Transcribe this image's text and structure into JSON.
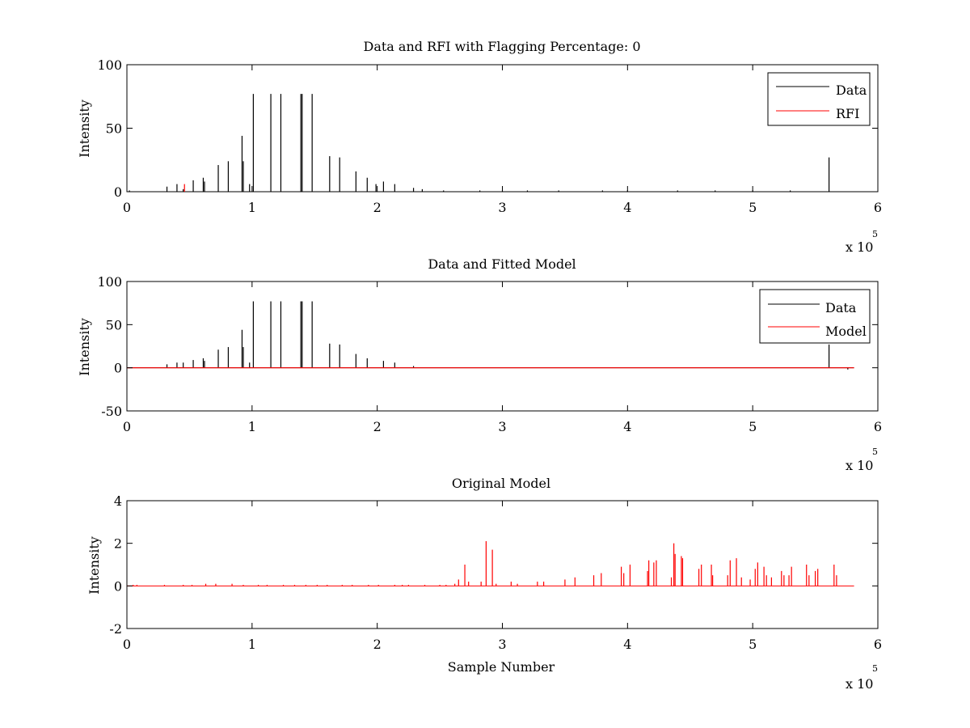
{
  "figure": {
    "background": "#ffffff"
  },
  "chart_data": [
    {
      "type": "line",
      "title": "Data and RFI with Flagging Percentage: 0",
      "xlabel": "",
      "ylabel": "Intensity",
      "xlim": [
        0,
        6
      ],
      "ylim": [
        0,
        100
      ],
      "xticks": [
        "0",
        "1",
        "2",
        "3",
        "4",
        "5",
        "6"
      ],
      "yticks": [
        "0",
        "50",
        "100"
      ],
      "ytick_values": [
        0,
        50,
        100
      ],
      "x_multiplier": {
        "base": "x 10",
        "exponent": "5"
      },
      "grid": false,
      "legend_position": "top-right",
      "series": [
        {
          "name": "Data",
          "color": "#000000",
          "baseline": 0,
          "spikes": [
            [
              0.02,
              1
            ],
            [
              0.32,
              4
            ],
            [
              0.4,
              6
            ],
            [
              0.45,
              2
            ],
            [
              0.53,
              9
            ],
            [
              0.61,
              11
            ],
            [
              0.62,
              8
            ],
            [
              0.73,
              21
            ],
            [
              0.81,
              24
            ],
            [
              0.92,
              44
            ],
            [
              0.93,
              24
            ],
            [
              0.98,
              6
            ],
            [
              1.01,
              77
            ],
            [
              1.15,
              77
            ],
            [
              1.23,
              77
            ],
            [
              1.39,
              77
            ],
            [
              1.4,
              77
            ],
            [
              1.48,
              77
            ],
            [
              1.62,
              28
            ],
            [
              1.7,
              27
            ],
            [
              1.83,
              16
            ],
            [
              1.92,
              11
            ],
            [
              1.99,
              6
            ],
            [
              2.05,
              8
            ],
            [
              2.14,
              6
            ],
            [
              2.29,
              3
            ],
            [
              2.36,
              2
            ],
            [
              2.53,
              1
            ],
            [
              2.82,
              1
            ],
            [
              3.0,
              1
            ],
            [
              3.2,
              1
            ],
            [
              3.45,
              1
            ],
            [
              3.8,
              1
            ],
            [
              4.0,
              1
            ],
            [
              4.4,
              1
            ],
            [
              4.7,
              1
            ],
            [
              5.0,
              1
            ],
            [
              5.3,
              1
            ],
            [
              5.61,
              27
            ]
          ]
        },
        {
          "name": "RFI",
          "color": "#ff0000",
          "baseline": 0,
          "spikes": [
            [
              0.46,
              6
            ]
          ]
        }
      ]
    },
    {
      "type": "line",
      "title": "Data and Fitted Model",
      "xlabel": "",
      "ylabel": "Intensity",
      "xlim": [
        0,
        6
      ],
      "ylim": [
        -50,
        100
      ],
      "xticks": [
        "0",
        "1",
        "2",
        "3",
        "4",
        "5",
        "6"
      ],
      "yticks": [
        "-50",
        "0",
        "50",
        "100"
      ],
      "ytick_values": [
        -50,
        0,
        50,
        100
      ],
      "x_multiplier": {
        "base": "x 10",
        "exponent": "5"
      },
      "grid": false,
      "legend_position": "top-right",
      "series": [
        {
          "name": "Data",
          "color": "#000000",
          "baseline": 0,
          "spikes": [
            [
              0.32,
              4
            ],
            [
              0.4,
              6
            ],
            [
              0.45,
              6
            ],
            [
              0.53,
              9
            ],
            [
              0.61,
              11
            ],
            [
              0.62,
              8
            ],
            [
              0.73,
              21
            ],
            [
              0.81,
              24
            ],
            [
              0.92,
              44
            ],
            [
              0.93,
              24
            ],
            [
              0.98,
              6
            ],
            [
              1.01,
              77
            ],
            [
              1.15,
              77
            ],
            [
              1.23,
              77
            ],
            [
              1.39,
              77
            ],
            [
              1.4,
              77
            ],
            [
              1.48,
              77
            ],
            [
              1.62,
              28
            ],
            [
              1.7,
              27
            ],
            [
              1.83,
              16
            ],
            [
              1.92,
              11
            ],
            [
              2.05,
              8
            ],
            [
              2.14,
              6
            ],
            [
              2.29,
              2
            ],
            [
              5.61,
              27
            ],
            [
              5.76,
              -2
            ]
          ]
        },
        {
          "name": "Model",
          "color": "#ff0000",
          "baseline": 0,
          "spikes": []
        }
      ]
    },
    {
      "type": "line",
      "title": "Original Model",
      "xlabel": "Sample Number",
      "ylabel": "Intensity",
      "xlim": [
        0,
        6
      ],
      "ylim": [
        -2,
        4
      ],
      "xticks": [
        "0",
        "1",
        "2",
        "3",
        "4",
        "5",
        "6"
      ],
      "yticks": [
        "-2",
        "0",
        "2",
        "4"
      ],
      "ytick_values": [
        -2,
        0,
        2,
        4
      ],
      "x_multiplier": {
        "base": "x 10",
        "exponent": "5"
      },
      "grid": false,
      "legend_position": "none",
      "series": [
        {
          "name": "",
          "color": "#ff0000",
          "baseline": 0,
          "spikes": [
            [
              0.05,
              0.05
            ],
            [
              0.08,
              0.05
            ],
            [
              0.3,
              0.05
            ],
            [
              0.45,
              0.05
            ],
            [
              0.52,
              0.05
            ],
            [
              0.63,
              0.1
            ],
            [
              0.71,
              0.1
            ],
            [
              0.84,
              0.1
            ],
            [
              0.93,
              0.05
            ],
            [
              1.05,
              0.05
            ],
            [
              1.12,
              0.05
            ],
            [
              1.25,
              0.05
            ],
            [
              1.34,
              0.05
            ],
            [
              1.43,
              0.05
            ],
            [
              1.52,
              0.05
            ],
            [
              1.6,
              0.05
            ],
            [
              1.72,
              0.05
            ],
            [
              1.8,
              0.05
            ],
            [
              1.93,
              0.05
            ],
            [
              2.01,
              0.05
            ],
            [
              2.14,
              0.05
            ],
            [
              2.2,
              0.05
            ],
            [
              2.25,
              0.05
            ],
            [
              2.38,
              0.05
            ],
            [
              2.5,
              0.05
            ],
            [
              2.55,
              0.05
            ],
            [
              2.62,
              0.1
            ],
            [
              2.65,
              0.3
            ],
            [
              2.7,
              1.0
            ],
            [
              2.73,
              0.2
            ],
            [
              2.83,
              0.2
            ],
            [
              2.87,
              2.1
            ],
            [
              2.92,
              1.7
            ],
            [
              2.95,
              0.1
            ],
            [
              3.07,
              0.2
            ],
            [
              3.12,
              0.1
            ],
            [
              3.28,
              0.2
            ],
            [
              3.33,
              0.2
            ],
            [
              3.5,
              0.3
            ],
            [
              3.58,
              0.4
            ],
            [
              3.73,
              0.5
            ],
            [
              3.79,
              0.6
            ],
            [
              3.95,
              0.9
            ],
            [
              3.97,
              0.6
            ],
            [
              4.02,
              1.0
            ],
            [
              4.16,
              0.7
            ],
            [
              4.17,
              1.2
            ],
            [
              4.21,
              1.1
            ],
            [
              4.23,
              1.2
            ],
            [
              4.35,
              0.4
            ],
            [
              4.37,
              2.0
            ],
            [
              4.38,
              1.5
            ],
            [
              4.43,
              1.4
            ],
            [
              4.44,
              1.3
            ],
            [
              4.57,
              0.8
            ],
            [
              4.59,
              1.0
            ],
            [
              4.67,
              1.0
            ],
            [
              4.68,
              0.5
            ],
            [
              4.8,
              0.5
            ],
            [
              4.82,
              1.2
            ],
            [
              4.87,
              1.3
            ],
            [
              4.91,
              0.4
            ],
            [
              4.98,
              0.3
            ],
            [
              5.02,
              0.8
            ],
            [
              5.04,
              1.1
            ],
            [
              5.09,
              0.9
            ],
            [
              5.11,
              0.5
            ],
            [
              5.15,
              0.4
            ],
            [
              5.23,
              0.7
            ],
            [
              5.25,
              0.5
            ],
            [
              5.29,
              0.5
            ],
            [
              5.31,
              0.9
            ],
            [
              5.43,
              1.0
            ],
            [
              5.45,
              0.5
            ],
            [
              5.5,
              0.7
            ],
            [
              5.52,
              0.8
            ],
            [
              5.65,
              1.0
            ],
            [
              5.67,
              0.5
            ]
          ]
        }
      ]
    }
  ]
}
